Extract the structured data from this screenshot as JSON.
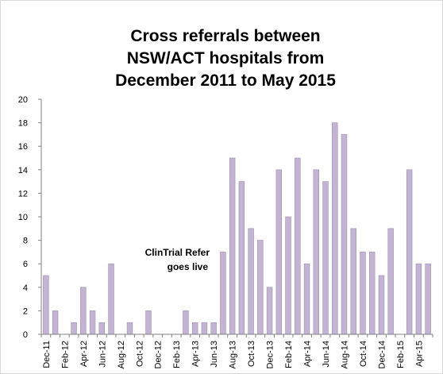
{
  "chart_data": {
    "type": "bar",
    "title": [
      "Cross referrals between",
      "NSW/ACT hospitals from",
      "December  2011 to May 2015"
    ],
    "xlabel": "",
    "ylabel": "",
    "ylim": [
      0,
      20
    ],
    "yticks": [
      0,
      2,
      4,
      6,
      8,
      10,
      12,
      14,
      16,
      18,
      20
    ],
    "grid": false,
    "bar_color": "#c4b4d4",
    "bar_edge_color": "#9d8db0",
    "categories": [
      "Dec-11",
      "Jan-12",
      "Feb-12",
      "Mar-12",
      "Apr-12",
      "May-12",
      "Jun-12",
      "Jul-12",
      "Aug-12",
      "Sep-12",
      "Oct-12",
      "Nov-12",
      "Dec-12",
      "Jan-13",
      "Feb-13",
      "Mar-13",
      "Apr-13",
      "May-13",
      "Jun-13",
      "Jul-13",
      "Aug-13",
      "Sep-13",
      "Oct-13",
      "Nov-13",
      "Dec-13",
      "Jan-14",
      "Feb-14",
      "Mar-14",
      "Apr-14",
      "May-14",
      "Jun-14",
      "Jul-14",
      "Aug-14",
      "Sep-14",
      "Oct-14",
      "Nov-14",
      "Dec-14",
      "Jan-15",
      "Feb-15",
      "Mar-15",
      "Apr-15",
      "May-15"
    ],
    "values": [
      5,
      2,
      0,
      1,
      4,
      2,
      1,
      6,
      0,
      1,
      0,
      2,
      0,
      0,
      0,
      2,
      1,
      1,
      1,
      7,
      15,
      13,
      9,
      8,
      4,
      14,
      10,
      15,
      6,
      14,
      13,
      18,
      17,
      9,
      7,
      7,
      5,
      9,
      0,
      14,
      6,
      6
    ],
    "xtick_labels": [
      "Dec-11",
      "Feb-12",
      "Apr-12",
      "Jun-12",
      "Aug-12",
      "Oct-12",
      "Dec-12",
      "Feb-13",
      "Apr-13",
      "Jun-13",
      "Aug-13",
      "Oct-13",
      "Dec-13",
      "Feb-14",
      "Apr-14",
      "Jun-14",
      "Aug-14",
      "Oct-14",
      "Dec-14",
      "Feb-15",
      "Apr-15"
    ],
    "annotation": {
      "lines": [
        "ClinTrial Refer",
        "goes live"
      ]
    }
  }
}
